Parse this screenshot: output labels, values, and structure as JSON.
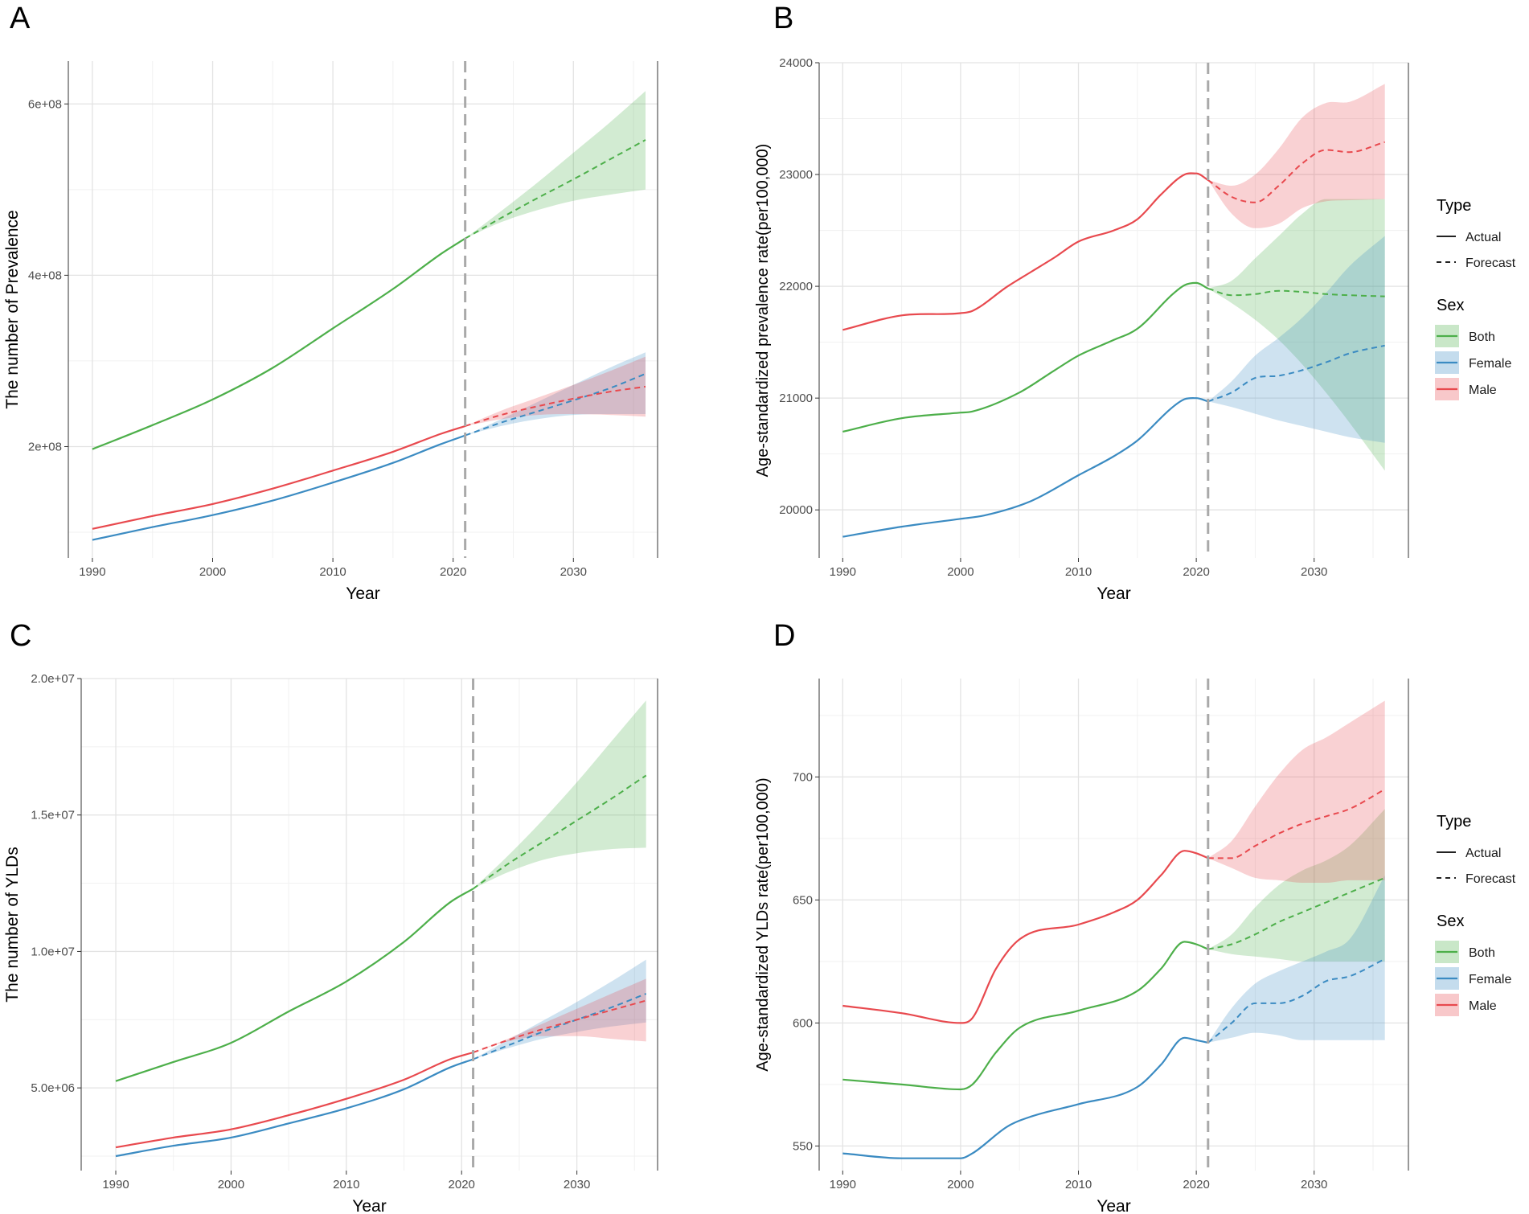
{
  "colors": {
    "Both": "#4DAF4A",
    "Female": "#3B8BC2",
    "Male": "#E8494E",
    "cutoff": "#A9A9A9"
  },
  "legend": {
    "type_title": "Type",
    "types": [
      "Actual",
      "Forecast"
    ],
    "sex_title": "Sex",
    "sexes": [
      "Both",
      "Female",
      "Male"
    ]
  },
  "chart_data": [
    {
      "panel": "A",
      "type": "line",
      "title": "",
      "xlabel": "Year",
      "ylabel": "The number of Prevalence",
      "xlim": [
        1988,
        2037
      ],
      "ylim": [
        70000000,
        650000000
      ],
      "xticks": [
        1990,
        2000,
        2010,
        2020,
        2030
      ],
      "yticks": [
        200000000,
        400000000,
        600000000
      ],
      "ytick_labels": [
        "2e+08",
        "4e+08",
        "6e+08"
      ],
      "cutoff_year": 2021,
      "show_legend": false,
      "series": [
        {
          "name": "Both",
          "actual": {
            "x": [
              1990,
              1995,
              2000,
              2005,
              2010,
              2015,
              2019,
              2021
            ],
            "y": [
              197000000,
              225000000,
              255000000,
              292000000,
              338000000,
              384000000,
              425000000,
              443000000
            ]
          },
          "forecast": {
            "x": [
              2021,
              2024,
              2027,
              2030,
              2033,
              2036
            ],
            "y": [
              443000000,
              467000000,
              490000000,
              512000000,
              535000000,
              558000000
            ]
          },
          "lower": [
            443000000,
            462000000,
            476000000,
            487000000,
            494000000,
            500000000
          ],
          "upper": [
            443000000,
            475000000,
            508000000,
            543000000,
            578000000,
            615000000
          ]
        },
        {
          "name": "Female",
          "actual": {
            "x": [
              1990,
              1995,
              2000,
              2005,
              2010,
              2015,
              2019,
              2021
            ],
            "y": [
              91000000,
              106000000,
              120000000,
              137000000,
              158000000,
              181000000,
              203000000,
              213000000
            ]
          },
          "forecast": {
            "x": [
              2021,
              2024,
              2027,
              2030,
              2033,
              2036
            ],
            "y": [
              213000000,
              228000000,
              241000000,
              254000000,
              268000000,
              285000000
            ]
          },
          "lower": [
            213000000,
            224000000,
            232000000,
            237000000,
            238000000,
            238000000
          ],
          "upper": [
            213000000,
            232000000,
            252000000,
            272000000,
            292000000,
            310000000
          ]
        },
        {
          "name": "Male",
          "actual": {
            "x": [
              1990,
              1995,
              2000,
              2005,
              2010,
              2015,
              2019,
              2021
            ],
            "y": [
              104000000,
              119000000,
              133000000,
              151000000,
              172000000,
              194000000,
              215000000,
              224000000
            ]
          },
          "forecast": {
            "x": [
              2021,
              2024,
              2027,
              2030,
              2033,
              2036
            ],
            "y": [
              224000000,
              237000000,
              247000000,
              256000000,
              264000000,
              270000000
            ]
          },
          "lower": [
            224000000,
            232000000,
            237000000,
            238000000,
            237000000,
            235000000
          ],
          "upper": [
            224000000,
            242000000,
            257000000,
            272000000,
            288000000,
            305000000
          ]
        }
      ]
    },
    {
      "panel": "B",
      "type": "line",
      "title": "",
      "xlabel": "Year",
      "ylabel": "Age-standardized prevalence rate(per100,000)",
      "xlim": [
        1988,
        2038
      ],
      "ylim": [
        19570,
        24000
      ],
      "xticks": [
        1990,
        2000,
        2010,
        2020,
        2030
      ],
      "yticks": [
        20000,
        21000,
        22000,
        23000,
        24000
      ],
      "ytick_labels": [
        "20000",
        "21000",
        "22000",
        "23000",
        "24000"
      ],
      "cutoff_year": 2021,
      "show_legend": true,
      "series": [
        {
          "name": "Both",
          "actual": {
            "x": [
              1990,
              1995,
              2000,
              2001,
              2005,
              2008,
              2010,
              2013,
              2015,
              2018,
              2019,
              2020,
              2021
            ],
            "y": [
              20700,
              20820,
              20870,
              20880,
              21050,
              21250,
              21380,
              21520,
              21620,
              21930,
              22010,
              22030,
              21980
            ]
          },
          "forecast": {
            "x": [
              2021,
              2023,
              2025,
              2027,
              2029,
              2031,
              2033,
              2036
            ],
            "y": [
              21980,
              21920,
              21930,
              21960,
              21950,
              21930,
              21920,
              21910
            ]
          },
          "lower": [
            21980,
            21850,
            21700,
            21520,
            21300,
            21050,
            20780,
            20350
          ],
          "upper": [
            21980,
            22050,
            22250,
            22450,
            22650,
            22780,
            22780,
            22780
          ]
        },
        {
          "name": "Female",
          "actual": {
            "x": [
              1990,
              1995,
              2000,
              2002,
              2006,
              2010,
              2013,
              2015,
              2018,
              2019,
              2020,
              2021
            ],
            "y": [
              19760,
              19850,
              19920,
              19950,
              20080,
              20310,
              20480,
              20620,
              20920,
              20990,
              21000,
              20970
            ]
          },
          "forecast": {
            "x": [
              2021,
              2023,
              2025,
              2027,
              2029,
              2031,
              2033,
              2036
            ],
            "y": [
              20970,
              21050,
              21180,
              21200,
              21250,
              21320,
              21400,
              21470
            ]
          },
          "lower": [
            20970,
            20920,
            20860,
            20800,
            20750,
            20700,
            20650,
            20600
          ],
          "upper": [
            20970,
            21150,
            21380,
            21540,
            21720,
            21940,
            22180,
            22450
          ]
        },
        {
          "name": "Male",
          "actual": {
            "x": [
              1990,
              1995,
              2000,
              2001,
              2004,
              2006,
              2008,
              2010,
              2013,
              2015,
              2017,
              2019,
              2020,
              2021
            ],
            "y": [
              21610,
              21740,
              21760,
              21780,
              22000,
              22130,
              22260,
              22400,
              22500,
              22600,
              22820,
              23000,
              23010,
              22950
            ]
          },
          "forecast": {
            "x": [
              2021,
              2023,
              2025,
              2027,
              2029,
              2031,
              2033,
              2036
            ],
            "y": [
              22950,
              22800,
              22750,
              22900,
              23100,
              23220,
              23200,
              23290
            ]
          },
          "lower": [
            22950,
            22650,
            22520,
            22560,
            22700,
            22760,
            22770,
            22780
          ],
          "upper": [
            22950,
            22900,
            23000,
            23230,
            23510,
            23640,
            23650,
            23810
          ]
        }
      ]
    },
    {
      "panel": "C",
      "type": "line",
      "title": "",
      "xlabel": "Year",
      "ylabel": "The number of YLDs",
      "xlim": [
        1987,
        2037
      ],
      "ylim": [
        1970000,
        20000000
      ],
      "xticks": [
        1990,
        2000,
        2010,
        2020,
        2030
      ],
      "yticks": [
        5000000,
        10000000,
        15000000,
        20000000
      ],
      "ytick_labels": [
        "5.0e+06",
        "1.0e+07",
        "1.5e+07",
        "2.0e+07"
      ],
      "cutoff_year": 2021,
      "show_legend": false,
      "series": [
        {
          "name": "Both",
          "actual": {
            "x": [
              1990,
              1995,
              2000,
              2005,
              2010,
              2015,
              2019,
              2021
            ],
            "y": [
              5250000,
              5950000,
              6650000,
              7800000,
              8900000,
              10350000,
              11800000,
              12300000
            ]
          },
          "forecast": {
            "x": [
              2021,
              2024,
              2027,
              2030,
              2033,
              2036
            ],
            "y": [
              12300000,
              13200000,
              14000000,
              14800000,
              15600000,
              16450000
            ]
          },
          "lower": [
            12300000,
            12900000,
            13350000,
            13600000,
            13750000,
            13800000
          ],
          "upper": [
            12300000,
            13500000,
            14800000,
            16200000,
            17700000,
            19200000
          ]
        },
        {
          "name": "Female",
          "actual": {
            "x": [
              1990,
              1995,
              2000,
              2005,
              2010,
              2015,
              2019,
              2021
            ],
            "y": [
              2500000,
              2880000,
              3180000,
              3700000,
              4250000,
              4950000,
              5750000,
              6050000
            ]
          },
          "forecast": {
            "x": [
              2021,
              2024,
              2027,
              2030,
              2033,
              2036
            ],
            "y": [
              6050000,
              6550000,
              7050000,
              7500000,
              7950000,
              8450000
            ]
          },
          "lower": [
            6050000,
            6450000,
            6800000,
            7050000,
            7250000,
            7400000
          ],
          "upper": [
            6050000,
            6750000,
            7450000,
            8150000,
            8900000,
            9700000
          ]
        },
        {
          "name": "Male",
          "actual": {
            "x": [
              1990,
              1995,
              2000,
              2005,
              2010,
              2015,
              2019,
              2021
            ],
            "y": [
              2820000,
              3180000,
              3480000,
              4000000,
              4600000,
              5300000,
              6050000,
              6300000
            ]
          },
          "forecast": {
            "x": [
              2021,
              2024,
              2027,
              2030,
              2033,
              2036
            ],
            "y": [
              6300000,
              6750000,
              7150000,
              7500000,
              7850000,
              8200000
            ]
          },
          "lower": [
            6300000,
            6700000,
            6900000,
            6900000,
            6800000,
            6700000
          ],
          "upper": [
            6300000,
            6800000,
            7350000,
            7900000,
            8450000,
            9000000
          ]
        }
      ]
    },
    {
      "panel": "D",
      "type": "line",
      "title": "",
      "xlabel": "Year",
      "ylabel": "Age-standardized YLDs rate(per100,000)",
      "xlim": [
        1988,
        2038
      ],
      "ylim": [
        540,
        740
      ],
      "xticks": [
        1990,
        2000,
        2010,
        2020,
        2030
      ],
      "yticks": [
        550,
        600,
        650,
        700
      ],
      "ytick_labels": [
        "550",
        "600",
        "650",
        "700"
      ],
      "cutoff_year": 2021,
      "show_legend": true,
      "series": [
        {
          "name": "Both",
          "actual": {
            "x": [
              1990,
              1995,
              2000,
              2001,
              2003,
              2005,
              2010,
              2015,
              2017,
              2019,
              2020,
              2021
            ],
            "y": [
              577,
              575,
              573,
              575,
              588,
              598,
              605,
              613,
              622,
              633,
              632,
              630
            ]
          },
          "forecast": {
            "x": [
              2021,
              2023,
              2025,
              2027,
              2029,
              2031,
              2033,
              2036
            ],
            "y": [
              630,
              632,
              636,
              641,
              645,
              649,
              653,
              659
            ]
          },
          "lower": [
            630,
            628,
            627,
            626,
            625,
            625,
            625,
            625
          ],
          "upper": [
            630,
            636,
            647,
            656,
            662,
            666,
            672,
            687
          ]
        },
        {
          "name": "Female",
          "actual": {
            "x": [
              1990,
              1995,
              2000,
              2001,
              2004,
              2006,
              2010,
              2015,
              2017,
              2019,
              2020,
              2021
            ],
            "y": [
              547,
              545,
              545,
              547,
              558,
              562,
              567,
              574,
              583,
              594,
              593,
              592
            ]
          },
          "forecast": {
            "x": [
              2021,
              2023,
              2025,
              2027,
              2029,
              2031,
              2033,
              2036
            ],
            "y": [
              592,
              600,
              608,
              608,
              611,
              617,
              619,
              626
            ]
          },
          "lower": [
            592,
            594,
            596,
            595,
            593,
            593,
            593,
            593
          ],
          "upper": [
            592,
            606,
            616,
            621,
            625,
            629,
            634,
            660
          ]
        },
        {
          "name": "Male",
          "actual": {
            "x": [
              1990,
              1995,
              2000,
              2001,
              2003,
              2005,
              2010,
              2013,
              2015,
              2017,
              2019,
              2020,
              2021
            ],
            "y": [
              607,
              604,
              600,
              602,
              622,
              634,
              640,
              645,
              650,
              660,
              670,
              669,
              667
            ]
          },
          "forecast": {
            "x": [
              2021,
              2023,
              2025,
              2027,
              2029,
              2031,
              2033,
              2036
            ],
            "y": [
              667,
              667,
              672,
              677,
              681,
              684,
              687,
              695
            ]
          },
          "lower": [
            667,
            663,
            659,
            658,
            657,
            657,
            658,
            658
          ],
          "upper": [
            667,
            674,
            688,
            701,
            711,
            716,
            722,
            731
          ]
        }
      ]
    }
  ]
}
